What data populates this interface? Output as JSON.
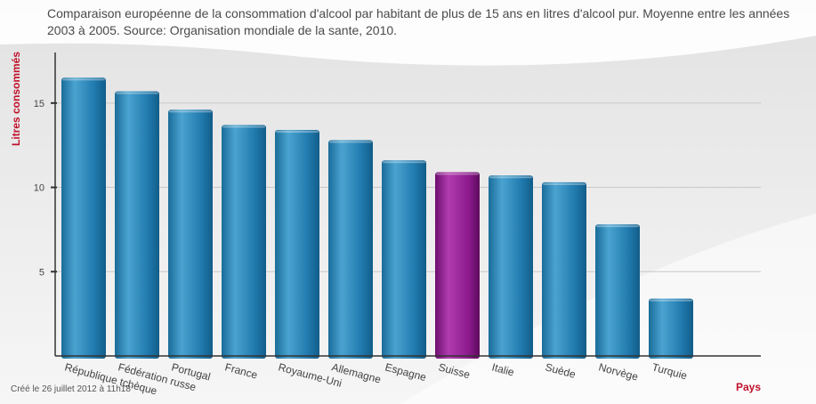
{
  "title": "Comparaison européenne de la consommation d'alcool par habitant de plus de 15 ans en litres d'alcool pur. Moyenne entre les années 2003 à 2005. Source: Organisation mondiale de la sante, 2010.",
  "credit": "Créé le 26 juillet 2012 à 11h18",
  "colors": {
    "bar": "#1f7fb0",
    "highlight": "#8c1a8c",
    "axis_label": "#c0102a",
    "gridline": "#c8c8c8"
  },
  "chart_data": {
    "type": "bar",
    "title": "Comparaison européenne de la consommation d'alcool par habitant de plus de 15 ans en litres d'alcool pur. Moyenne entre les années 2003 à 2005. Source: Organisation mondiale de la sante, 2010.",
    "xlabel": "Pays",
    "ylabel": "Litres consommés",
    "categories": [
      "République tchèque",
      "Fédération russe",
      "Portugal",
      "France",
      "Royaume-Uni",
      "Allemagne",
      "Espagne",
      "Suisse",
      "Italie",
      "Suède",
      "Norvège",
      "Turquie"
    ],
    "values": [
      16.5,
      15.7,
      14.6,
      13.7,
      13.4,
      12.8,
      11.6,
      10.9,
      10.7,
      10.3,
      7.8,
      3.4
    ],
    "highlight": "Suisse",
    "ylim": [
      0,
      18
    ],
    "yticks": [
      5,
      10,
      15
    ],
    "grid": true,
    "legend": "none"
  }
}
